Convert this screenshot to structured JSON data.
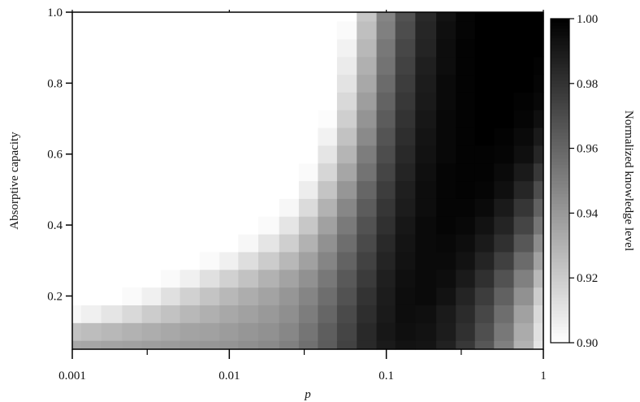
{
  "chart_data": {
    "type": "heatmap",
    "title": "",
    "xlabel": "p",
    "ylabel": "Absorptive capacity",
    "colorbar_label": "Normalized knowledge level",
    "x_scale": "log",
    "xlim": [
      0.001,
      1
    ],
    "ylim": [
      0.05,
      1.0
    ],
    "x_ticks": [
      {
        "value": 0.001,
        "label": "0.001"
      },
      {
        "value": 0.01,
        "label": "0.01"
      },
      {
        "value": 0.1,
        "label": "0.1"
      },
      {
        "value": 1,
        "label": "1"
      }
    ],
    "x_minor_ticks": [
      0.003,
      0.03,
      0.3
    ],
    "y_ticks": [
      {
        "value": 0.2,
        "label": "0.2"
      },
      {
        "value": 0.4,
        "label": "0.4"
      },
      {
        "value": 0.6,
        "label": "0.6"
      },
      {
        "value": 0.8,
        "label": "0.8"
      },
      {
        "value": 1.0,
        "label": "1.0"
      }
    ],
    "colorbar_range": [
      0.9,
      1.0
    ],
    "colorbar_ticks": [
      {
        "value": 0.9,
        "label": "0.90"
      },
      {
        "value": 0.92,
        "label": "0.92"
      },
      {
        "value": 0.94,
        "label": "0.94"
      },
      {
        "value": 0.96,
        "label": "0.96"
      },
      {
        "value": 0.98,
        "label": "0.98"
      },
      {
        "value": 1.0,
        "label": "1.00"
      }
    ],
    "colormap": {
      "low": "#ffffff",
      "high": "#000000"
    },
    "grid": false,
    "x": [
      0.001,
      0.0013,
      0.0018,
      0.0024,
      0.0032,
      0.0042,
      0.0056,
      0.0075,
      0.01,
      0.013,
      0.018,
      0.024,
      0.032,
      0.042,
      0.056,
      0.075,
      0.1,
      0.13,
      0.18,
      0.24,
      0.32,
      0.42,
      0.56,
      0.75,
      1.0
    ],
    "y": [
      0.05,
      0.1,
      0.15,
      0.2,
      0.25,
      0.3,
      0.35,
      0.4,
      0.45,
      0.5,
      0.55,
      0.6,
      0.65,
      0.7,
      0.75,
      0.8,
      0.85,
      0.9,
      0.95,
      1.0
    ],
    "z": [
      [
        0.934,
        0.935,
        0.936,
        0.937,
        0.938,
        0.939,
        0.94,
        0.941,
        0.942,
        0.944,
        0.946,
        0.95,
        0.956,
        0.964,
        0.974,
        0.984,
        0.99,
        0.993,
        0.992,
        0.987,
        0.978,
        0.966,
        0.95,
        0.93,
        0.91
      ],
      [
        0.924,
        0.926,
        0.928,
        0.93,
        0.932,
        0.934,
        0.936,
        0.937,
        0.939,
        0.941,
        0.943,
        0.947,
        0.954,
        0.963,
        0.973,
        0.984,
        0.991,
        0.994,
        0.993,
        0.989,
        0.981,
        0.969,
        0.953,
        0.933,
        0.912
      ],
      [
        0.903,
        0.906,
        0.91,
        0.915,
        0.92,
        0.924,
        0.928,
        0.931,
        0.934,
        0.937,
        0.94,
        0.944,
        0.951,
        0.96,
        0.971,
        0.982,
        0.99,
        0.995,
        0.994,
        0.99,
        0.983,
        0.972,
        0.957,
        0.937,
        0.915
      ],
      [
        0.9,
        0.9,
        0.9,
        0.902,
        0.906,
        0.912,
        0.918,
        0.923,
        0.928,
        0.932,
        0.936,
        0.941,
        0.948,
        0.957,
        0.968,
        0.98,
        0.989,
        0.995,
        0.996,
        0.993,
        0.986,
        0.976,
        0.962,
        0.943,
        0.92
      ],
      [
        0.9,
        0.9,
        0.9,
        0.9,
        0.9,
        0.902,
        0.906,
        0.912,
        0.918,
        0.924,
        0.93,
        0.936,
        0.943,
        0.953,
        0.965,
        0.977,
        0.988,
        0.994,
        0.996,
        0.995,
        0.99,
        0.981,
        0.968,
        0.95,
        0.928
      ],
      [
        0.9,
        0.9,
        0.9,
        0.9,
        0.9,
        0.9,
        0.9,
        0.902,
        0.906,
        0.913,
        0.92,
        0.928,
        0.937,
        0.948,
        0.961,
        0.974,
        0.986,
        0.993,
        0.996,
        0.996,
        0.993,
        0.986,
        0.975,
        0.958,
        0.937
      ],
      [
        0.9,
        0.9,
        0.9,
        0.9,
        0.9,
        0.9,
        0.9,
        0.9,
        0.9,
        0.903,
        0.91,
        0.919,
        0.93,
        0.943,
        0.957,
        0.971,
        0.984,
        0.992,
        0.996,
        0.997,
        0.995,
        0.99,
        0.981,
        0.966,
        0.945
      ],
      [
        0.9,
        0.9,
        0.9,
        0.9,
        0.9,
        0.9,
        0.9,
        0.9,
        0.9,
        0.9,
        0.902,
        0.91,
        0.922,
        0.937,
        0.952,
        0.968,
        0.981,
        0.991,
        0.996,
        0.998,
        0.997,
        0.993,
        0.986,
        0.973,
        0.954
      ],
      [
        0.9,
        0.9,
        0.9,
        0.9,
        0.9,
        0.9,
        0.9,
        0.9,
        0.9,
        0.9,
        0.9,
        0.903,
        0.914,
        0.93,
        0.947,
        0.964,
        0.979,
        0.989,
        0.995,
        0.998,
        0.998,
        0.996,
        0.99,
        0.979,
        0.962
      ],
      [
        0.9,
        0.9,
        0.9,
        0.9,
        0.9,
        0.9,
        0.9,
        0.9,
        0.9,
        0.9,
        0.9,
        0.9,
        0.907,
        0.923,
        0.941,
        0.96,
        0.976,
        0.988,
        0.995,
        0.998,
        0.999,
        0.998,
        0.994,
        0.985,
        0.97
      ],
      [
        0.9,
        0.9,
        0.9,
        0.9,
        0.9,
        0.9,
        0.9,
        0.9,
        0.9,
        0.9,
        0.9,
        0.9,
        0.902,
        0.916,
        0.935,
        0.955,
        0.973,
        0.986,
        0.994,
        0.998,
        0.999,
        0.999,
        0.996,
        0.99,
        0.978
      ],
      [
        0.9,
        0.9,
        0.9,
        0.9,
        0.9,
        0.9,
        0.9,
        0.9,
        0.9,
        0.9,
        0.9,
        0.9,
        0.9,
        0.91,
        0.929,
        0.951,
        0.97,
        0.984,
        0.993,
        0.997,
        0.999,
        0.999,
        0.998,
        0.994,
        0.985
      ],
      [
        0.9,
        0.9,
        0.9,
        0.9,
        0.9,
        0.9,
        0.9,
        0.9,
        0.9,
        0.9,
        0.9,
        0.9,
        0.9,
        0.905,
        0.924,
        0.946,
        0.967,
        0.982,
        0.992,
        0.997,
        0.999,
        1.0,
        0.999,
        0.996,
        0.99
      ],
      [
        0.9,
        0.9,
        0.9,
        0.9,
        0.9,
        0.9,
        0.9,
        0.9,
        0.9,
        0.9,
        0.9,
        0.9,
        0.9,
        0.901,
        0.919,
        0.942,
        0.964,
        0.98,
        0.991,
        0.997,
        0.999,
        1.0,
        1.0,
        0.998,
        0.994
      ],
      [
        0.9,
        0.9,
        0.9,
        0.9,
        0.9,
        0.9,
        0.9,
        0.9,
        0.9,
        0.9,
        0.9,
        0.9,
        0.9,
        0.9,
        0.915,
        0.938,
        0.961,
        0.978,
        0.99,
        0.996,
        0.999,
        1.0,
        1.0,
        0.999,
        0.997
      ],
      [
        0.9,
        0.9,
        0.9,
        0.9,
        0.9,
        0.9,
        0.9,
        0.9,
        0.9,
        0.9,
        0.9,
        0.9,
        0.9,
        0.9,
        0.911,
        0.934,
        0.958,
        0.976,
        0.989,
        0.996,
        0.999,
        1.0,
        1.0,
        1.0,
        0.998
      ],
      [
        0.9,
        0.9,
        0.9,
        0.9,
        0.9,
        0.9,
        0.9,
        0.9,
        0.9,
        0.9,
        0.9,
        0.9,
        0.9,
        0.9,
        0.908,
        0.931,
        0.955,
        0.974,
        0.988,
        0.995,
        0.999,
        1.0,
        1.0,
        1.0,
        0.999
      ],
      [
        0.9,
        0.9,
        0.9,
        0.9,
        0.9,
        0.9,
        0.9,
        0.9,
        0.9,
        0.9,
        0.9,
        0.9,
        0.9,
        0.9,
        0.905,
        0.928,
        0.953,
        0.972,
        0.986,
        0.995,
        0.999,
        1.0,
        1.0,
        1.0,
        1.0
      ],
      [
        0.9,
        0.9,
        0.9,
        0.9,
        0.9,
        0.9,
        0.9,
        0.9,
        0.9,
        0.9,
        0.9,
        0.9,
        0.9,
        0.9,
        0.902,
        0.925,
        0.95,
        0.97,
        0.985,
        0.994,
        0.998,
        1.0,
        1.0,
        1.0,
        1.0
      ],
      [
        0.9,
        0.9,
        0.9,
        0.9,
        0.9,
        0.9,
        0.9,
        0.9,
        0.9,
        0.9,
        0.9,
        0.9,
        0.9,
        0.9,
        0.9,
        0.922,
        0.948,
        0.968,
        0.984,
        0.993,
        0.998,
        1.0,
        1.0,
        1.0,
        1.0
      ]
    ]
  }
}
